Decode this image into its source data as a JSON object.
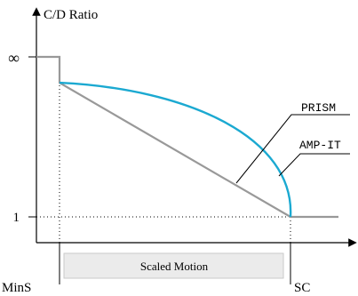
{
  "chart_data": {
    "type": "line",
    "ylabel": "C/D Ratio",
    "x_ticks": [
      "MinS",
      "SC"
    ],
    "y_ticks": [
      "1",
      "∞"
    ],
    "region_label": "Scaled Motion",
    "series": [
      {
        "name": "PRISM",
        "description": "linear decrease",
        "color": "#999999",
        "points": [
          [
            0,
            1
          ],
          [
            0,
            0.92
          ],
          [
            1,
            0
          ],
          [
            1.2,
            0
          ]
        ]
      },
      {
        "name": "AMP-IT",
        "description": "concave decrease",
        "color": "#1BA9D1",
        "points": [
          [
            0,
            0.92
          ],
          [
            0.35,
            0.85
          ],
          [
            0.65,
            0.68
          ],
          [
            0.85,
            0.45
          ],
          [
            0.95,
            0.25
          ],
          [
            1,
            0
          ]
        ]
      }
    ],
    "colors": {
      "axis": "#000000",
      "grid_dotted": "#000000",
      "region_fill": "#EBEBEB",
      "region_stroke": "#C9C9C9"
    }
  }
}
